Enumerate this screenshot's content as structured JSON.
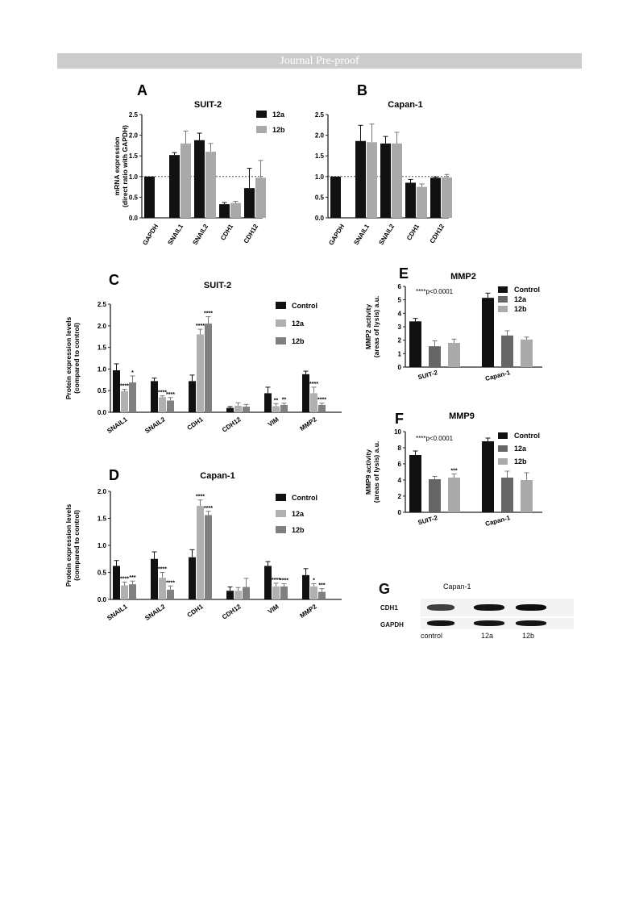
{
  "header": {
    "banner": "Journal Pre-proof"
  },
  "chart_data": [
    {
      "id": "A",
      "panel_label": "A",
      "type": "bar",
      "title": "SUIT-2",
      "ylabel": "mRNA expression\n(direct ratio with GAPDH)",
      "ylim": [
        0,
        2.5
      ],
      "yticks": [
        0,
        0.5,
        1,
        1.5,
        2,
        2.5
      ],
      "tick_labels": [
        "0.0",
        "0.5",
        "1.0",
        "1.5",
        "2.0",
        "2.5"
      ],
      "reference_line": 1,
      "categories": [
        "GAPDH",
        "SNAIL1",
        "SNAIL2",
        "CDH1",
        "CDH12"
      ],
      "series": [
        {
          "name": "12a",
          "color": "#111111",
          "values": [
            1.0,
            1.52,
            1.88,
            0.33,
            0.72
          ],
          "errors": [
            0,
            0.06,
            0.17,
            0.04,
            0.48
          ]
        },
        {
          "name": "12b",
          "color": "#a9a9a9",
          "values": [
            null,
            1.8,
            1.6,
            0.36,
            0.97
          ],
          "errors": [
            0,
            0.3,
            0.2,
            0.04,
            0.42
          ]
        }
      ],
      "legend": "top-right"
    },
    {
      "id": "B",
      "panel_label": "B",
      "type": "bar",
      "title": "Capan-1",
      "ylabel": "",
      "ylim": [
        0,
        2.5
      ],
      "yticks": [
        0,
        0.5,
        1,
        1.5,
        2,
        2.5
      ],
      "tick_labels": [
        "0.0",
        "0.5",
        "1.0",
        "1.5",
        "2.0",
        "2.5"
      ],
      "reference_line": 1,
      "categories": [
        "GAPDH",
        "SNAIL1",
        "SNAIL2",
        "CDH1",
        "CDH12"
      ],
      "series": [
        {
          "name": "12a",
          "color": "#111111",
          "values": [
            1.0,
            1.86,
            1.8,
            0.85,
            0.97
          ],
          "errors": [
            0,
            0.38,
            0.17,
            0.08,
            0.02
          ]
        },
        {
          "name": "12b",
          "color": "#a9a9a9",
          "values": [
            null,
            1.83,
            1.8,
            0.75,
            0.98
          ],
          "errors": [
            0,
            0.44,
            0.27,
            0.07,
            0.07
          ]
        }
      ],
      "legend": "none"
    },
    {
      "id": "C",
      "panel_label": "C",
      "type": "bar",
      "title": "SUIT-2",
      "ylabel": "Protein expression levels\n(compared to control)",
      "ylim": [
        0,
        2.5
      ],
      "yticks": [
        0,
        0.5,
        1,
        1.5,
        2,
        2.5
      ],
      "tick_labels": [
        "0.0",
        "0.5",
        "1.0",
        "1.5",
        "2.0",
        "2.5"
      ],
      "categories": [
        "SNAIL1",
        "SNAIL2",
        "CDH1",
        "CDH12",
        "VIM",
        "MMP2"
      ],
      "series": [
        {
          "name": "Control",
          "color": "#111111",
          "values": [
            0.97,
            0.72,
            0.72,
            0.1,
            0.44,
            0.88
          ],
          "errors": [
            0.15,
            0.07,
            0.14,
            0.03,
            0.14,
            0.07
          ]
        },
        {
          "name": "12a",
          "color": "#b0b0b0",
          "values": [
            0.49,
            0.35,
            1.8,
            0.15,
            0.14,
            0.44
          ],
          "errors": [
            0.04,
            0.03,
            0.12,
            0.07,
            0.06,
            0.14
          ]
        },
        {
          "name": "12b",
          "color": "#808080",
          "values": [
            0.69,
            0.27,
            2.05,
            0.13,
            0.17,
            0.17
          ],
          "errors": [
            0.15,
            0.07,
            0.16,
            0.05,
            0.04,
            0.04
          ]
        }
      ],
      "significance": [
        [
          "",
          "****",
          "*"
        ],
        [
          "",
          "****",
          "****"
        ],
        [
          "",
          "****",
          "****"
        ],
        [
          "",
          "",
          ""
        ],
        [
          "",
          "**",
          "**"
        ],
        [
          "",
          "****",
          "****"
        ]
      ],
      "legend": "top-right"
    },
    {
      "id": "D",
      "panel_label": "D",
      "type": "bar",
      "title": "Capan-1",
      "ylabel": "Protein expression levels\n(compared to control)",
      "ylim": [
        0,
        2.0
      ],
      "yticks": [
        0,
        0.5,
        1,
        1.5,
        2
      ],
      "tick_labels": [
        "0.0",
        "0.5",
        "1.0",
        "1.5",
        "2.0"
      ],
      "categories": [
        "SNAIL1",
        "SNAIL2",
        "CDH1",
        "CDH12",
        "VIM",
        "MMP2"
      ],
      "series": [
        {
          "name": "Control",
          "color": "#111111",
          "values": [
            0.62,
            0.75,
            0.78,
            0.16,
            0.62,
            0.45
          ],
          "errors": [
            0.1,
            0.13,
            0.14,
            0.07,
            0.08,
            0.12
          ]
        },
        {
          "name": "12a",
          "color": "#b0b0b0",
          "values": [
            0.26,
            0.4,
            1.73,
            0.16,
            0.24,
            0.24
          ],
          "errors": [
            0.06,
            0.1,
            0.11,
            0.06,
            0.06,
            0.05
          ]
        },
        {
          "name": "12b",
          "color": "#808080",
          "values": [
            0.28,
            0.18,
            1.56,
            0.23,
            0.24,
            0.14
          ],
          "errors": [
            0.06,
            0.07,
            0.07,
            0.16,
            0.05,
            0.06
          ]
        }
      ],
      "significance": [
        [
          "",
          "****",
          "***"
        ],
        [
          "",
          "****",
          "****"
        ],
        [
          "",
          "****",
          "****"
        ],
        [
          "",
          "",
          ""
        ],
        [
          "",
          "****",
          "****"
        ],
        [
          "",
          "*",
          "***"
        ]
      ],
      "legend": "top-right"
    },
    {
      "id": "E",
      "panel_label": "E",
      "type": "bar",
      "title": "MMP2",
      "ylabel": "MMP2 activity\n(areas of lysis) a.u.",
      "annotation": "****p<0.0001",
      "ylim": [
        0,
        6
      ],
      "yticks": [
        0,
        1,
        2,
        3,
        4,
        5,
        6
      ],
      "tick_labels": [
        "0",
        "1",
        "2",
        "3",
        "4",
        "5",
        "6"
      ],
      "categories": [
        "SUIT-2",
        "Capan-1"
      ],
      "series": [
        {
          "name": "Control",
          "color": "#111111",
          "values": [
            3.4,
            5.15
          ],
          "errors": [
            0.22,
            0.35
          ]
        },
        {
          "name": "12a",
          "color": "#666666",
          "values": [
            1.55,
            2.35
          ],
          "errors": [
            0.4,
            0.35
          ]
        },
        {
          "name": "12b",
          "color": "#aaaaaa",
          "values": [
            1.8,
            2.05
          ],
          "errors": [
            0.28,
            0.18
          ]
        }
      ],
      "legend": "top-right"
    },
    {
      "id": "F",
      "panel_label": "F",
      "type": "bar",
      "title": "MMP9",
      "ylabel": "MMP9 activity\n(areas of lysis) a.u.",
      "annotation": "****p<0.0001",
      "ylim": [
        0,
        10
      ],
      "yticks": [
        0,
        2,
        4,
        6,
        8,
        10
      ],
      "tick_labels": [
        "0",
        "2",
        "4",
        "6",
        "8",
        "10"
      ],
      "categories": [
        "SUIT-2",
        "Capan-1"
      ],
      "series": [
        {
          "name": "Control",
          "color": "#111111",
          "values": [
            7.1,
            8.8
          ],
          "errors": [
            0.5,
            0.4
          ]
        },
        {
          "name": "12a",
          "color": "#666666",
          "values": [
            4.1,
            4.3
          ],
          "errors": [
            0.35,
            0.8
          ]
        },
        {
          "name": "12b",
          "color": "#aaaaaa",
          "values": [
            4.3,
            4.0
          ],
          "errors": [
            0.45,
            0.9
          ]
        }
      ],
      "significance": [
        [
          "",
          "",
          "***"
        ],
        [
          "",
          "",
          ""
        ]
      ],
      "legend": "top-right"
    }
  ],
  "blot": {
    "panel_label": "G",
    "title": "Capan-1",
    "rows": [
      {
        "label": "CDH1",
        "intensity": [
          0.55,
          0.85,
          0.9
        ]
      },
      {
        "label": "GAPDH",
        "intensity": [
          0.85,
          0.85,
          0.85
        ]
      }
    ],
    "lanes": [
      "control",
      "12a",
      "12b"
    ]
  }
}
